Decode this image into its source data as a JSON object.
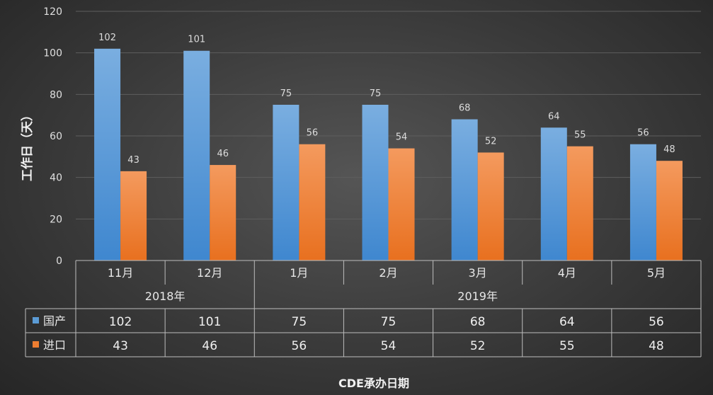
{
  "chart_data": {
    "type": "bar",
    "ylabel": "工作日（天）",
    "xlabel": "CDE承办日期",
    "ylim": [
      0,
      120
    ],
    "yticks": [
      0,
      20,
      40,
      60,
      80,
      100,
      120
    ],
    "categories": [
      "11月",
      "12月",
      "1月",
      "2月",
      "3月",
      "4月",
      "5月"
    ],
    "groups": [
      {
        "label": "2018年",
        "span": 2
      },
      {
        "label": "2019年",
        "span": 5
      }
    ],
    "series": [
      {
        "name": "国产",
        "color": "#5b9bd5",
        "values": [
          102,
          101,
          75,
          75,
          68,
          64,
          56
        ]
      },
      {
        "name": "进口",
        "color": "#ed7d31",
        "values": [
          43,
          46,
          56,
          54,
          52,
          55,
          48
        ]
      }
    ],
    "data_table": true,
    "grid": true
  }
}
